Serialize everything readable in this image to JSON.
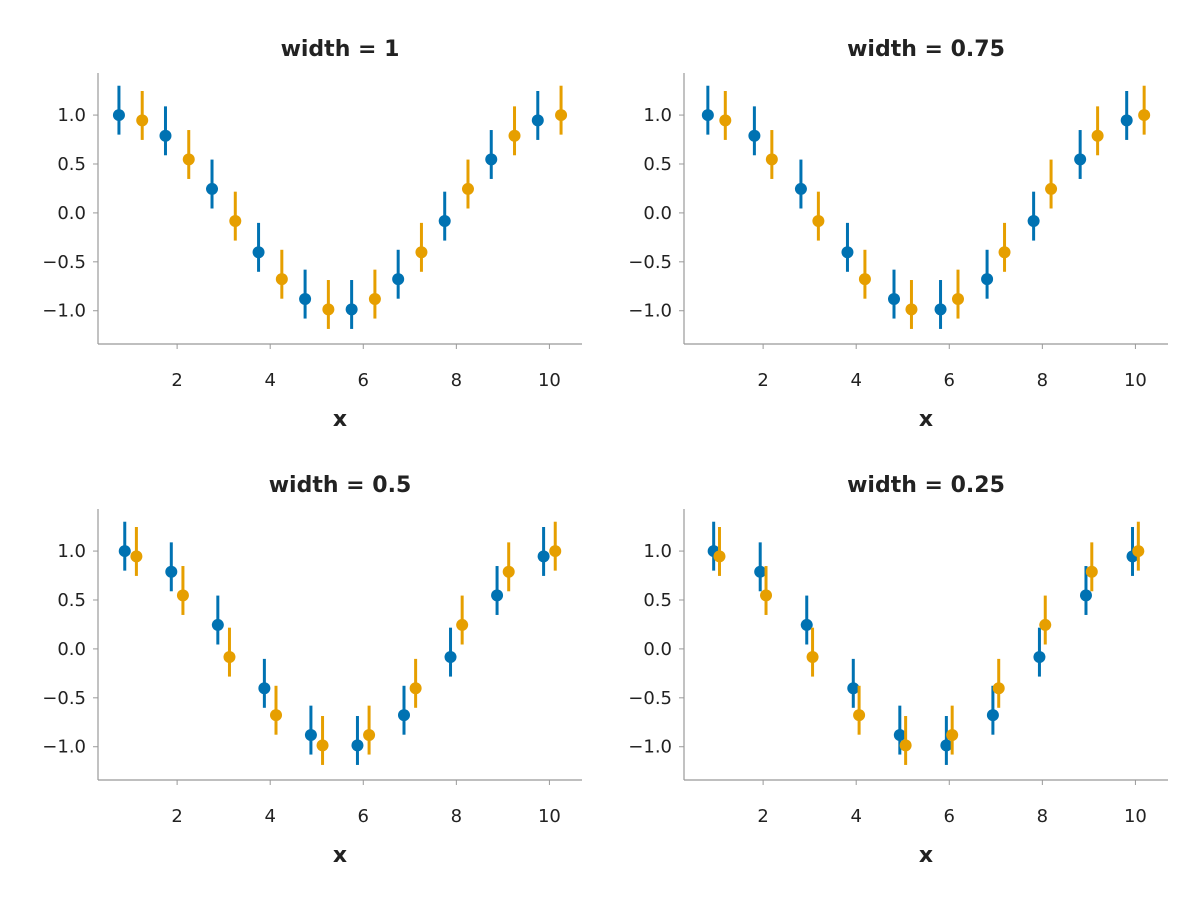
{
  "chart_data": [
    {
      "type": "scatter",
      "title": "width = 1",
      "xlabel": "x",
      "dodge_width": 1
    },
    {
      "type": "scatter",
      "title": "width = 0.75",
      "xlabel": "x",
      "dodge_width": 0.75
    },
    {
      "type": "scatter",
      "title": "width = 0.5",
      "xlabel": "x",
      "dodge_width": 0.5
    },
    {
      "type": "scatter",
      "title": "width = 0.25",
      "xlabel": "x",
      "dodge_width": 0.25
    }
  ],
  "shared": {
    "x": [
      1,
      2,
      3,
      4,
      5,
      6,
      7,
      8,
      9,
      10
    ],
    "series": [
      {
        "color": "#0072B2",
        "values": [
          1.0,
          0.789,
          0.245,
          -0.402,
          -0.88,
          -0.986,
          -0.677,
          -0.083,
          0.547,
          0.946
        ]
      },
      {
        "color": "#E69F00",
        "values": [
          0.946,
          0.547,
          -0.083,
          -0.677,
          -0.986,
          -0.88,
          -0.402,
          0.245,
          0.789,
          1.0
        ]
      }
    ],
    "error_low": 0.2,
    "error_high": 0.3,
    "xlim": [
      0.3,
      10.7
    ],
    "ylim": [
      -1.34,
      1.43
    ],
    "xticks": [
      2,
      4,
      6,
      8,
      10
    ],
    "xtick_labels": [
      "2",
      "4",
      "6",
      "8",
      "10"
    ],
    "yticks": [
      1.0,
      0.5,
      0.0,
      -0.5,
      -1.0
    ],
    "ytick_labels": [
      "1.0",
      "0.5",
      "0.0",
      "−0.5",
      "−1.0"
    ],
    "grid": false
  }
}
